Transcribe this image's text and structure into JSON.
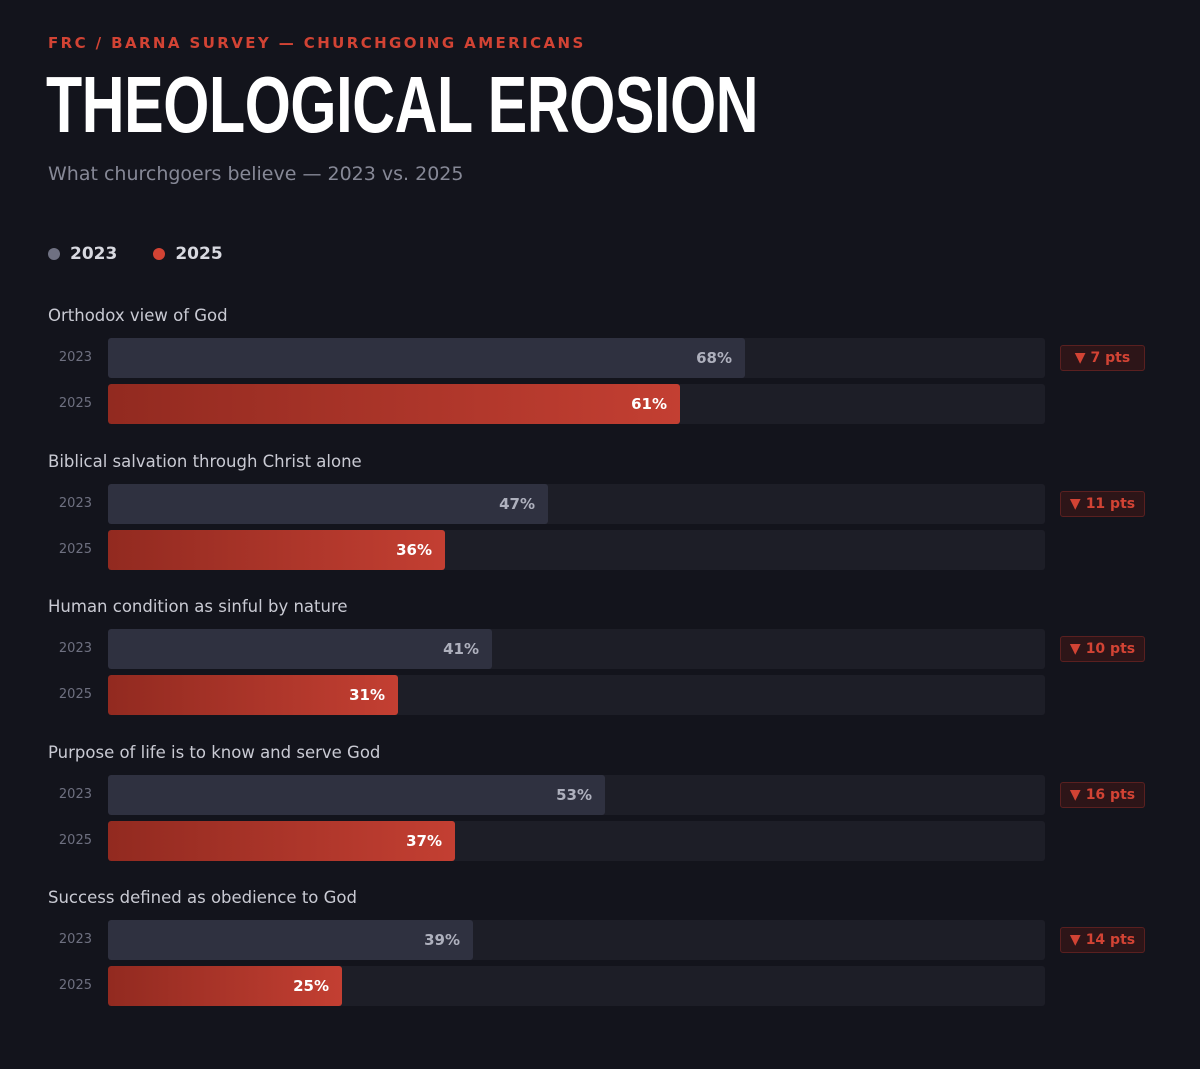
{
  "header": {
    "eyebrow": "FRC / BARNA SURVEY — CHURCHGOING AMERICANS",
    "title": "THEOLOGICAL EROSION",
    "subtitle": "What churchgoers believe — 2023 vs. 2025"
  },
  "legend": [
    {
      "label": "2023",
      "color": "#6f7182"
    },
    {
      "label": "2025",
      "color": "#d24334"
    }
  ],
  "chart_data": {
    "type": "bar",
    "orientation": "horizontal",
    "title": "THEOLOGICAL EROSION",
    "subtitle": "What churchgoers believe — 2023 vs. 2025",
    "xlim": [
      0,
      100
    ],
    "unit": "%",
    "legend_placement": "top-left",
    "categories": [
      "Orthodox view of God",
      "Biblical salvation through Christ alone",
      "Human condition as sinful by nature",
      "Purpose of life is to know and serve God",
      "Success defined as obedience to God"
    ],
    "series": [
      {
        "name": "2023",
        "color": "#2f3140",
        "values": [
          68,
          47,
          41,
          53,
          39
        ],
        "labels": [
          "68%",
          "47%",
          "41%",
          "53%",
          "39%"
        ]
      },
      {
        "name": "2025",
        "color": "#c33f32",
        "values": [
          61,
          36,
          31,
          37,
          25
        ],
        "labels": [
          "61%",
          "36%",
          "31%",
          "37%",
          "25%"
        ]
      }
    ],
    "deltas": [
      "7 pts",
      "11 pts",
      "10 pts",
      "16 pts",
      "14 pts"
    ],
    "delta_symbol": "▼"
  }
}
